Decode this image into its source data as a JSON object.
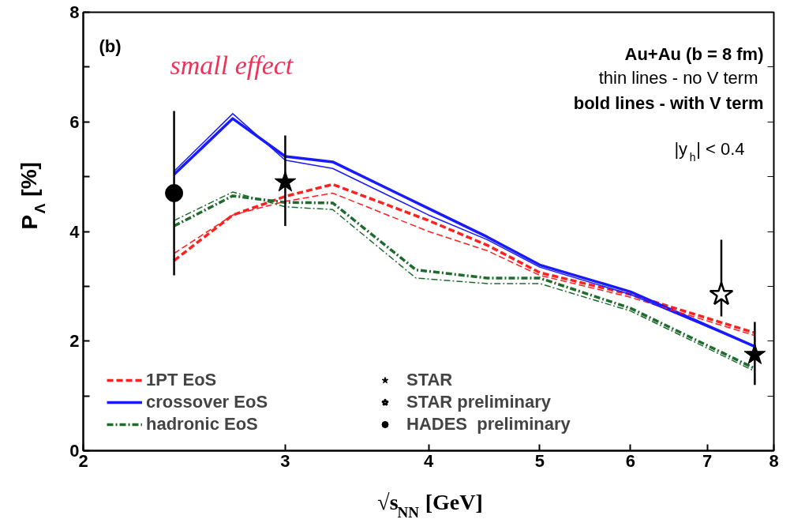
{
  "chart_data": {
    "type": "line",
    "xlabel": "√s$_{NN}$ [GeV]",
    "ylabel": "P$_{Λ}$ [%]",
    "log": "x",
    "xlim": [
      2,
      8
    ],
    "xticks": [
      2,
      3,
      4,
      5,
      6,
      7,
      8
    ],
    "ylim": [
      0,
      8
    ],
    "yticks": [
      0,
      {
        "value": 1,
        "label": null
      },
      2,
      {
        "value": 3,
        "label": null
      },
      4,
      {
        "value": 5,
        "label": null
      },
      6,
      {
        "value": 7,
        "label": null
      },
      8
    ],
    "grid": false,
    "legend": "bottom left",
    "annotations": [
      "(b)",
      "small effect",
      "Au+Au (b = 8 fm)",
      "thin lines - no V term",
      "bold lines - with V term",
      "|y$_{h}$| < 0.4"
    ],
    "series": [
      {
        "name": "1PT EoS",
        "color": "#ff2020",
        "line_style": "dashed",
        "x": [
          2.4,
          2.7,
          3.0,
          3.3,
          4.0,
          4.5,
          5.0,
          6.0,
          7.7
        ],
        "values": [
          3.47,
          4.3,
          4.64,
          4.86,
          4.2,
          3.75,
          3.25,
          2.85,
          2.15
        ]
      },
      {
        "name": "crossover EoS",
        "color": "#1a1aff",
        "line_style": "solid",
        "x": [
          2.4,
          2.7,
          3.0,
          3.3,
          4.0,
          4.5,
          5.0,
          6.0,
          7.7
        ],
        "values": [
          5.04,
          6.06,
          5.37,
          5.27,
          4.42,
          3.9,
          3.39,
          2.9,
          1.9
        ]
      },
      {
        "name": "hadronic EoS",
        "color": "#1f6b2e",
        "line_style": "dashdot",
        "x": [
          2.4,
          2.7,
          3.0,
          3.3,
          3.9,
          4.5,
          5.0,
          6.0,
          7.7
        ],
        "values": [
          4.1,
          4.65,
          4.53,
          4.52,
          3.3,
          3.15,
          3.15,
          2.6,
          1.5
        ]
      },
      {
        "color": "#ff2020",
        "line_style": "dashed",
        "x": [
          2.4,
          2.7,
          3.0,
          3.3,
          4.0,
          4.5,
          5.0,
          6.0,
          7.7
        ],
        "values": [
          3.6,
          4.3,
          4.55,
          4.7,
          4.0,
          3.65,
          3.2,
          2.8,
          2.1
        ]
      },
      {
        "color": "#1a1aff",
        "line_style": "solid",
        "x": [
          2.4,
          2.7,
          3.0,
          3.3,
          4.0,
          4.5,
          5.0,
          6.0,
          7.7
        ],
        "values": [
          5.1,
          6.15,
          5.3,
          5.15,
          4.3,
          3.85,
          3.35,
          2.85,
          1.9
        ]
      },
      {
        "color": "#1f6b2e",
        "line_style": "dashdot",
        "x": [
          2.4,
          2.7,
          3.0,
          3.3,
          3.9,
          4.5,
          5.0,
          6.0,
          7.7
        ],
        "values": [
          4.2,
          4.72,
          4.45,
          4.4,
          3.15,
          3.05,
          3.05,
          2.55,
          1.45
        ]
      },
      {
        "type": "scatter",
        "name": "STAR",
        "color": "#000000",
        "marker": "star",
        "x": [
          3.0,
          7.7
        ],
        "values": [
          4.9,
          1.75
        ],
        "errors": [
          [
            4.1,
            5.75
          ],
          [
            1.2,
            2.35
          ]
        ]
      },
      {
        "type": "scatter",
        "name": "STAR preliminary",
        "color": "#000000",
        "marker": "star_open",
        "x": [
          7.2
        ],
        "values": [
          2.85
        ],
        "errors": [
          [
            2.45,
            3.85
          ]
        ]
      },
      {
        "type": "scatter",
        "name": "HADES  preliminary",
        "color": "#000000",
        "marker": "circle",
        "x": [
          2.4
        ],
        "values": [
          4.7
        ],
        "errors": [
          [
            3.2,
            6.2
          ]
        ]
      }
    ]
  }
}
